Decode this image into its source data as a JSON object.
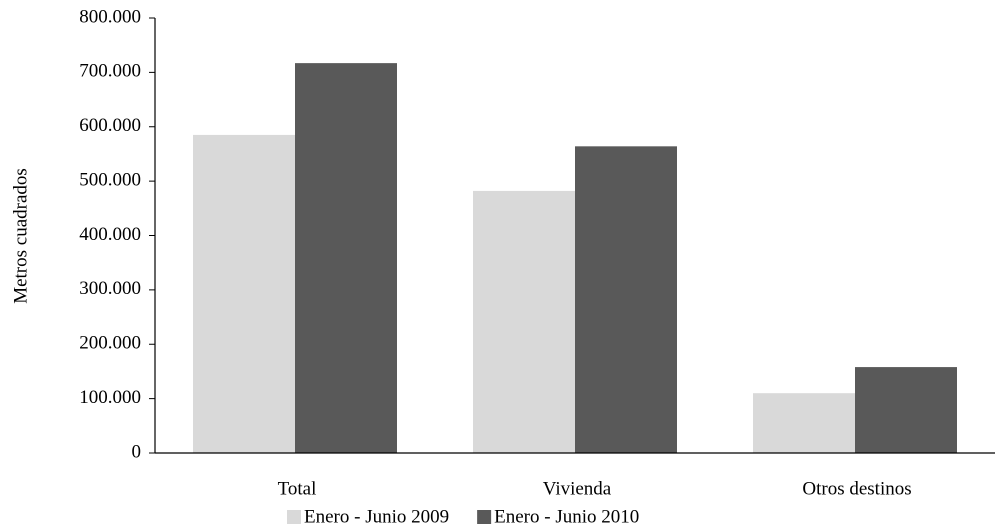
{
  "chart_data": {
    "type": "bar",
    "y_label": "Metros  cuadrados",
    "categories": [
      "Total",
      "Vivienda",
      "Otros destinos"
    ],
    "series": [
      {
        "name": "Enero - Junio 2009",
        "color": "#d9d9d9",
        "values": [
          585000,
          482000,
          110000
        ]
      },
      {
        "name": "Enero - Junio 2010",
        "color": "#595959",
        "values": [
          717000,
          564000,
          158000
        ]
      }
    ],
    "ylim": [
      0,
      800000
    ],
    "yticks": [
      0,
      {
        "value": 100000,
        "label": "100.000"
      },
      {
        "value": 200000,
        "label": "200.000"
      },
      {
        "value": 300000,
        "label": "300.000"
      },
      {
        "value": 400000,
        "label": "400.000"
      },
      {
        "value": 500000,
        "label": "500.000"
      },
      {
        "value": 600000,
        "label": "600.000"
      },
      {
        "value": 700000,
        "label": "700.000"
      },
      {
        "value": 800000,
        "label": "800.000"
      }
    ],
    "grid": false
  }
}
